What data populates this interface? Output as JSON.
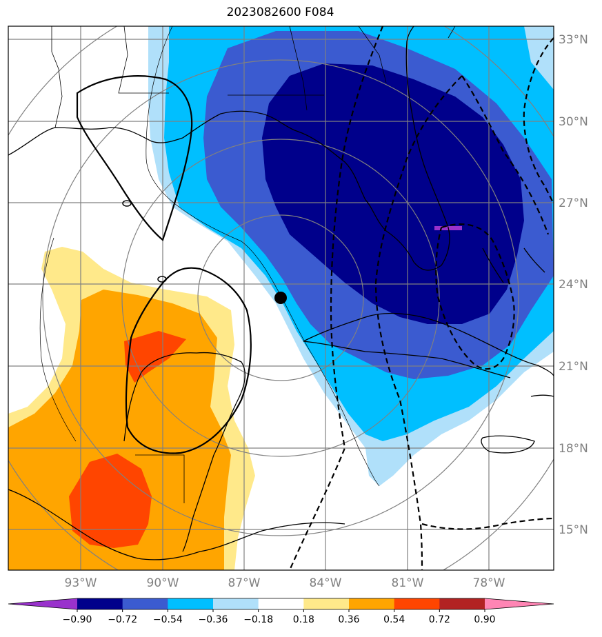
{
  "title": "2023082600 F084",
  "map": {
    "lat_labels": [
      "33°N",
      "30°N",
      "27°N",
      "24°N",
      "21°N",
      "18°N",
      "15°N"
    ],
    "lon_labels": [
      "93°W",
      "90°W",
      "87°W",
      "84°W",
      "81°W",
      "78°W"
    ],
    "extent": {
      "lon": [
        -95.5,
        -75.5
      ],
      "lat": [
        13.5,
        33.5
      ]
    },
    "storm_position": {
      "lat": 23.5,
      "lon": -85.5
    },
    "gridlines": true
  },
  "colorbar": {
    "ticks": [
      "−0.90",
      "−0.72",
      "−0.54",
      "−0.36",
      "−0.18",
      "0.18",
      "0.36",
      "0.54",
      "0.72",
      "0.90"
    ],
    "colors": [
      "#9932cc",
      "#00008b",
      "#3b5bd0",
      "#00bfff",
      "#b0e0fa",
      "#ffffff",
      "#ffe98a",
      "#ffa500",
      "#ff4500",
      "#b22222",
      "#ff85b4"
    ],
    "extend": "both"
  },
  "colors": {
    "grid": "#808080",
    "coast": "#000000",
    "label": "#808080"
  }
}
